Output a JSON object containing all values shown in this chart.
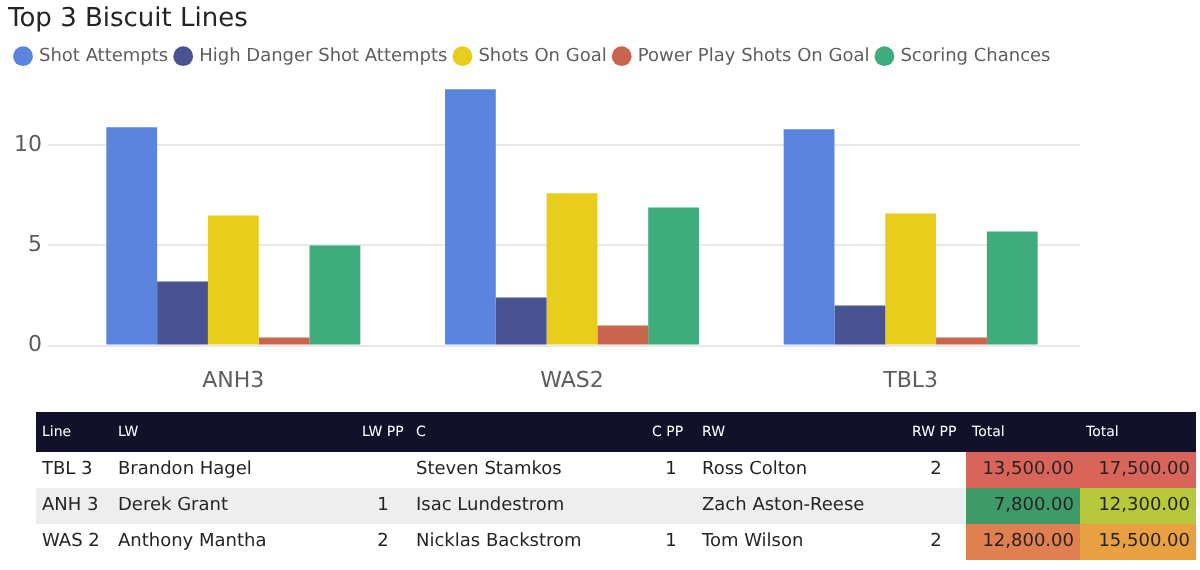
{
  "chart_data": [
    {
      "type": "bar",
      "title": "Top 3 Biscuit Lines",
      "categories": [
        "ANH3",
        "WAS2",
        "TBL3"
      ],
      "series": [
        {
          "name": "Shot Attempts",
          "color": "#5b84de",
          "values": [
            10.9,
            12.8,
            10.8
          ]
        },
        {
          "name": "High Danger Shot Attempts",
          "color": "#4a5391",
          "values": [
            3.2,
            2.4,
            2.0
          ]
        },
        {
          "name": "Shots On Goal",
          "color": "#e8cd1c",
          "values": [
            6.5,
            7.6,
            6.6
          ]
        },
        {
          "name": "Power Play Shots On Goal",
          "color": "#c9644f",
          "values": [
            0.4,
            1.0,
            0.4
          ]
        },
        {
          "name": "Scoring Chances",
          "color": "#3fac7e",
          "values": [
            5.0,
            6.9,
            5.7
          ]
        }
      ],
      "ylim": [
        0,
        13
      ],
      "yticks": [
        0,
        5,
        10
      ],
      "grid": "y",
      "legend": "top left"
    },
    {
      "type": "other",
      "categories": [
        "Line",
        "LW",
        "LW PP",
        "C",
        "C PP",
        "RW",
        "RW PP",
        "Total",
        "Total"
      ],
      "cells": [
        [
          "TBL 3",
          "Brandon Hagel",
          null,
          "Steven Stamkos",
          "1",
          "Ross Colton",
          "2",
          "13,500.00",
          "17,500.00"
        ],
        [
          "ANH 3",
          "Derek Grant",
          "1",
          "Isac Lundestrom",
          null,
          "Zach Aston-Reese",
          null,
          "7,800.00",
          "12,300.00"
        ],
        [
          "WAS 2",
          "Anthony Mantha",
          "2",
          "Nicklas Backstrom",
          "1",
          "Tom Wilson",
          "2",
          "12,800.00",
          "15,500.00"
        ]
      ],
      "colors": [
        [
          "#d9655a",
          "#d9655a"
        ],
        [
          "#3f9a6a",
          "#b8c83c"
        ],
        [
          "#e07f50",
          "#e8a040"
        ]
      ]
    }
  ]
}
